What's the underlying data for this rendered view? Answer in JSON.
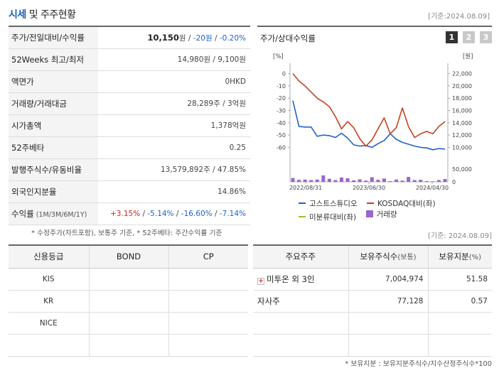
{
  "header": {
    "title_accent": "시세",
    "title_rest": " 및 주주현황",
    "base_date": "[기준:2024.08.09]"
  },
  "quote": {
    "rows": [
      {
        "label": "주가/전일대비/수익률",
        "price": "10,150",
        "unit": "원",
        "sep": " / ",
        "change": "-20원",
        "sep2": " / ",
        "pct": "-0.20%"
      },
      {
        "label": "52Weeks 최고/최저",
        "value": "14,980원 / 9,100원"
      },
      {
        "label": "액면가",
        "value": "0HKD"
      },
      {
        "label": "거래량/거래대금",
        "value": "28,289주 / 3억원"
      },
      {
        "label": "시가총액",
        "value": "1,378억원"
      },
      {
        "label": "52주베타",
        "value": "0.25"
      },
      {
        "label": "발행주식수/유동비율",
        "value": "13,579,892주 / 47.85%"
      },
      {
        "label": "외국인지분율",
        "value": "14.86%"
      },
      {
        "label_main": "수익률",
        "label_sub": " (1M/3M/6M/1Y)",
        "r1": "+3.15%",
        "r2": "-5.14%",
        "r3": "-16.60%",
        "r4": "-7.14%",
        "slash": "/ "
      }
    ],
    "note": "* 수정주가(차트포함), 보통주 기준, * 52주베타: 주간수익률 기준"
  },
  "chart_panel": {
    "title": "주가/상대수익률",
    "buttons": [
      "1",
      "2",
      "3"
    ]
  },
  "chart_data": {
    "type": "line",
    "left_axis": {
      "unit": "[%]",
      "ticks": [
        "0",
        "-10",
        "-20",
        "-30",
        "-40",
        "-50",
        "-60"
      ],
      "range": [
        -65,
        5
      ]
    },
    "right_axis": {
      "unit": "[원]",
      "ticks": [
        "22,000",
        "20,000",
        "18,000",
        "16,000",
        "14,000",
        "12,000",
        "10,000"
      ],
      "range": [
        9000,
        23000
      ]
    },
    "volume_axis": {
      "ticks": [
        "50,000",
        "0"
      ],
      "range": [
        0,
        55000
      ]
    },
    "x_ticks": [
      "2022/08/31",
      "2023/06/30",
      "2024/04/30"
    ],
    "series": [
      {
        "name": "고스트스튜디오",
        "color": "#1d62c9",
        "axis": "right",
        "values": [
          17600,
          13400,
          13300,
          13300,
          11800,
          12000,
          11900,
          11600,
          12300,
          11500,
          10400,
          10200,
          10300,
          10000,
          10600,
          11100,
          12200,
          11300,
          10800,
          10500,
          10200,
          10000,
          9900,
          9600,
          9800,
          9700
        ]
      },
      {
        "name": "KOSDAQ대비(좌)",
        "color": "#c8401a",
        "axis": "left",
        "values": [
          0,
          -6,
          -10,
          -15,
          -20,
          -23,
          -27,
          -35,
          -45,
          -39,
          -44,
          -53,
          -59,
          -54,
          -45,
          -36,
          -49,
          -44,
          -28,
          -43,
          -52,
          -49,
          -47,
          -49,
          -43,
          -39
        ]
      },
      {
        "name": "미분류대비(좌)",
        "color": "#a3bc2e",
        "axis": "left",
        "values": []
      },
      {
        "name": "거래량",
        "color": "#9b65c9",
        "axis": "volume",
        "values": [
          15000,
          8000,
          9000,
          7000,
          9000,
          25000,
          12000,
          7000,
          17000,
          14000,
          6000,
          10000,
          5000,
          18000,
          8000,
          13000,
          3000,
          9000,
          5000,
          19000,
          7000,
          8000,
          3000,
          2000,
          7000,
          11000
        ]
      }
    ]
  },
  "credit": {
    "headers": [
      "신용등급",
      "BOND",
      "CP"
    ],
    "rows": [
      [
        "KIS",
        "",
        ""
      ],
      [
        "KR",
        "",
        ""
      ],
      [
        "NICE",
        "",
        ""
      ],
      [
        "",
        "",
        ""
      ]
    ]
  },
  "base_date2": "[기준: 2024.08.09]",
  "holders": {
    "headers": {
      "h1": "주요주주",
      "h2": "보유주식수",
      "h2_sub": "(보통)",
      "h3": "보유지분",
      "h3_sub": "(%)"
    },
    "rows": [
      {
        "name": "미투온 외 3인",
        "shares": "7,004,974",
        "pct": "51.58",
        "expand": "+"
      },
      {
        "name": "자사주",
        "shares": "77,128",
        "pct": "0.57"
      }
    ],
    "note": "* 보유지분 : 보유지분주식수/지수산정주식수*100"
  }
}
